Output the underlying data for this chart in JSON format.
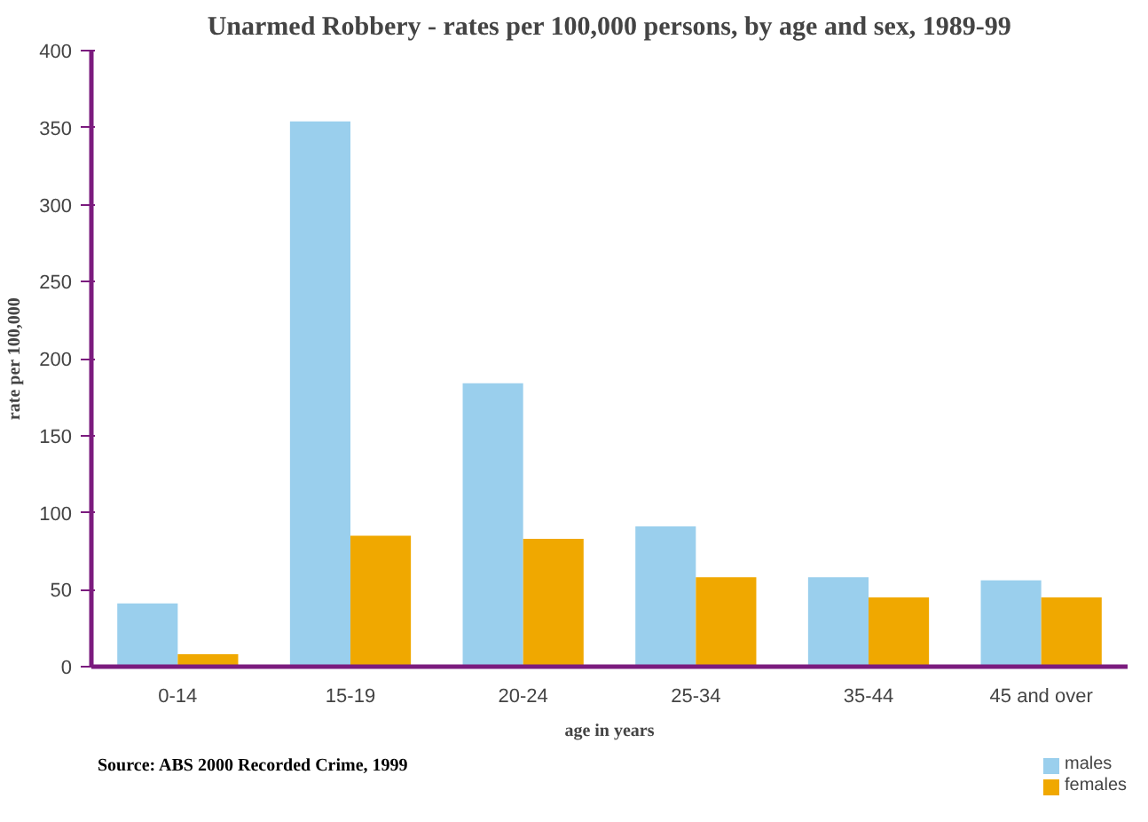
{
  "chart_data": {
    "type": "bar",
    "title": "Unarmed Robbery - rates per 100,000 persons, by age and sex, 1989-99",
    "xlabel": "age in years",
    "ylabel": "rate per 100,000",
    "annotations": [
      "Source: ABS 2000 Recorded Crime, 1999"
    ],
    "categories": [
      "0-14",
      "15-19",
      "20-24",
      "25-34",
      "35-44",
      "45 and over"
    ],
    "series": [
      {
        "name": "males",
        "color": "#9acfed",
        "values": [
          41,
          354,
          184,
          91,
          58,
          56
        ]
      },
      {
        "name": "females",
        "color": "#f0a800",
        "values": [
          8,
          85,
          83,
          58,
          45,
          45
        ]
      }
    ],
    "ylim": [
      0,
      400
    ],
    "yticks": [
      0,
      50,
      100,
      150,
      200,
      250,
      300,
      350,
      400
    ],
    "grid": false,
    "legend": "bottom right"
  }
}
